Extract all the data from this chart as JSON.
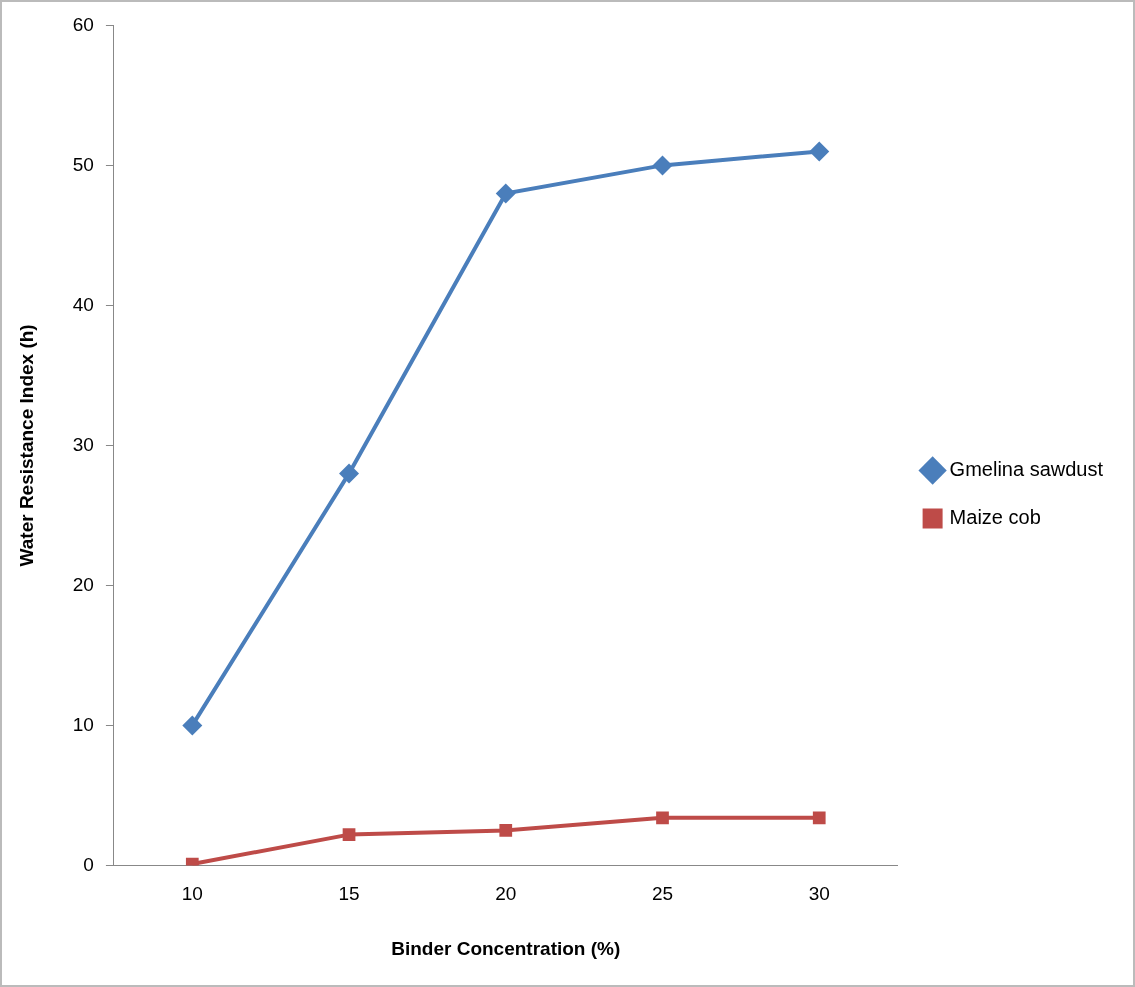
{
  "chart_data": {
    "type": "line",
    "xlabel": "Binder Concentration (%)",
    "ylabel": "Water Resistance Index (h)",
    "categories": [
      "10",
      "15",
      "20",
      "25",
      "30"
    ],
    "series": [
      {
        "name": "Gmelina sawdust",
        "color": "#4a7ebb",
        "marker": "diamond",
        "values": [
          10,
          28,
          48,
          50,
          51
        ]
      },
      {
        "name": "Maize cob",
        "color": "#be4b48",
        "marker": "square",
        "values": [
          0.1,
          2.2,
          2.5,
          3.4,
          3.4
        ]
      }
    ],
    "ylim": [
      0,
      60
    ],
    "yticks": [
      0,
      10,
      20,
      30,
      40,
      50,
      60
    ],
    "grid": false,
    "legend": "right",
    "line_style": "solid"
  }
}
